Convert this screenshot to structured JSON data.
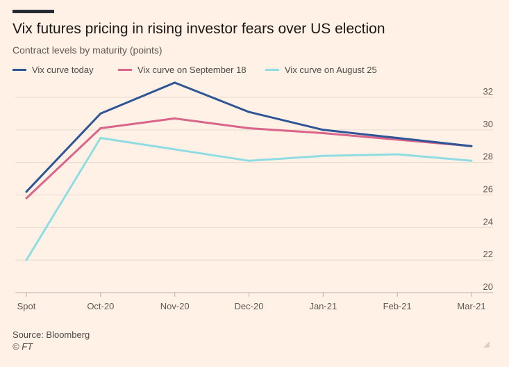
{
  "title": "Vix futures pricing in rising investor fears over US election",
  "subtitle": "Contract levels by maturity (points)",
  "source": "Source: Bloomberg",
  "credit": "© FT",
  "colors": {
    "background": "#fff1e5",
    "grid": "#e6d9ce",
    "series": [
      "#2e5596",
      "#d9658a",
      "#8fdde3"
    ]
  },
  "chart_data": {
    "type": "line",
    "title": "Vix futures pricing in rising investor fears over US election",
    "subtitle": "Contract levels by maturity (points)",
    "xlabel": "",
    "ylabel": "",
    "categories": [
      "Spot",
      "Oct-20",
      "Nov-20",
      "Dec-20",
      "Jan-21",
      "Feb-21",
      "Mar-21"
    ],
    "ylim": [
      20,
      32
    ],
    "yticks": [
      20,
      22,
      24,
      26,
      28,
      30,
      32
    ],
    "y_axis_side": "right",
    "grid": true,
    "legend_position": "top-left",
    "series": [
      {
        "name": "Vix curve today",
        "color": "#2e5596",
        "values": [
          26.2,
          31.0,
          32.9,
          31.1,
          30.0,
          29.5,
          29.0
        ]
      },
      {
        "name": "Vix curve on September 18",
        "color": "#d9658a",
        "values": [
          25.8,
          30.1,
          30.7,
          30.1,
          29.8,
          29.4,
          29.0
        ]
      },
      {
        "name": "Vix curve on August 25",
        "color": "#8fdde3",
        "values": [
          22.0,
          29.5,
          28.8,
          28.1,
          28.4,
          28.5,
          28.1
        ]
      }
    ]
  }
}
